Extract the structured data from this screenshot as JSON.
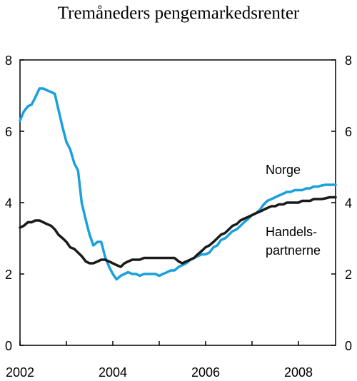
{
  "chart_data": {
    "type": "line",
    "title": "Tremåneders pengemarkedsrenter",
    "xlabel": "",
    "ylabel": "",
    "xlim": [
      2002,
      2008.8
    ],
    "ylim": [
      0,
      8
    ],
    "x_ticks": [
      2002,
      2004,
      2006,
      2008
    ],
    "y_ticks": [
      0,
      2,
      4,
      6,
      8
    ],
    "grid": false,
    "series": [
      {
        "name": "Norge",
        "color": "#1aa0dc",
        "points": [
          [
            2002.0,
            6.3
          ],
          [
            2002.08,
            6.55
          ],
          [
            2002.17,
            6.7
          ],
          [
            2002.25,
            6.75
          ],
          [
            2002.33,
            6.95
          ],
          [
            2002.42,
            7.2
          ],
          [
            2002.5,
            7.2
          ],
          [
            2002.58,
            7.15
          ],
          [
            2002.67,
            7.1
          ],
          [
            2002.75,
            7.05
          ],
          [
            2002.83,
            6.6
          ],
          [
            2002.92,
            6.1
          ],
          [
            2003.0,
            5.7
          ],
          [
            2003.08,
            5.5
          ],
          [
            2003.17,
            5.1
          ],
          [
            2003.25,
            4.9
          ],
          [
            2003.33,
            4.0
          ],
          [
            2003.42,
            3.5
          ],
          [
            2003.5,
            3.1
          ],
          [
            2003.58,
            2.8
          ],
          [
            2003.67,
            2.9
          ],
          [
            2003.75,
            2.9
          ],
          [
            2003.83,
            2.5
          ],
          [
            2003.92,
            2.2
          ],
          [
            2004.0,
            2.0
          ],
          [
            2004.08,
            1.85
          ],
          [
            2004.17,
            1.95
          ],
          [
            2004.25,
            2.0
          ],
          [
            2004.33,
            2.05
          ],
          [
            2004.42,
            2.0
          ],
          [
            2004.5,
            2.0
          ],
          [
            2004.58,
            1.95
          ],
          [
            2004.67,
            2.0
          ],
          [
            2004.75,
            2.0
          ],
          [
            2004.83,
            2.0
          ],
          [
            2004.92,
            2.0
          ],
          [
            2005.0,
            1.95
          ],
          [
            2005.08,
            2.0
          ],
          [
            2005.17,
            2.05
          ],
          [
            2005.25,
            2.1
          ],
          [
            2005.33,
            2.1
          ],
          [
            2005.42,
            2.2
          ],
          [
            2005.5,
            2.25
          ],
          [
            2005.58,
            2.3
          ],
          [
            2005.67,
            2.4
          ],
          [
            2005.75,
            2.45
          ],
          [
            2005.83,
            2.5
          ],
          [
            2005.92,
            2.55
          ],
          [
            2006.0,
            2.55
          ],
          [
            2006.08,
            2.6
          ],
          [
            2006.17,
            2.75
          ],
          [
            2006.25,
            2.8
          ],
          [
            2006.33,
            2.95
          ],
          [
            2006.42,
            3.0
          ],
          [
            2006.5,
            3.1
          ],
          [
            2006.58,
            3.2
          ],
          [
            2006.67,
            3.25
          ],
          [
            2006.75,
            3.35
          ],
          [
            2006.83,
            3.45
          ],
          [
            2006.92,
            3.55
          ],
          [
            2007.0,
            3.65
          ],
          [
            2007.08,
            3.7
          ],
          [
            2007.17,
            3.8
          ],
          [
            2007.25,
            3.95
          ],
          [
            2007.33,
            4.05
          ],
          [
            2007.42,
            4.1
          ],
          [
            2007.5,
            4.15
          ],
          [
            2007.58,
            4.2
          ],
          [
            2007.67,
            4.25
          ],
          [
            2007.75,
            4.3
          ],
          [
            2007.83,
            4.3
          ],
          [
            2007.92,
            4.35
          ],
          [
            2008.0,
            4.35
          ],
          [
            2008.08,
            4.35
          ],
          [
            2008.17,
            4.4
          ],
          [
            2008.25,
            4.4
          ],
          [
            2008.33,
            4.45
          ],
          [
            2008.42,
            4.45
          ],
          [
            2008.5,
            4.48
          ],
          [
            2008.58,
            4.5
          ],
          [
            2008.67,
            4.5
          ],
          [
            2008.75,
            4.5
          ],
          [
            2008.8,
            4.5
          ]
        ]
      },
      {
        "name": "Handels-\npartnerne",
        "color": "#1a1a1a",
        "points": [
          [
            2002.0,
            3.3
          ],
          [
            2002.08,
            3.35
          ],
          [
            2002.17,
            3.45
          ],
          [
            2002.25,
            3.45
          ],
          [
            2002.33,
            3.5
          ],
          [
            2002.42,
            3.5
          ],
          [
            2002.5,
            3.45
          ],
          [
            2002.58,
            3.4
          ],
          [
            2002.67,
            3.35
          ],
          [
            2002.75,
            3.25
          ],
          [
            2002.83,
            3.1
          ],
          [
            2002.92,
            3.0
          ],
          [
            2003.0,
            2.9
          ],
          [
            2003.08,
            2.75
          ],
          [
            2003.17,
            2.7
          ],
          [
            2003.25,
            2.6
          ],
          [
            2003.33,
            2.5
          ],
          [
            2003.42,
            2.35
          ],
          [
            2003.5,
            2.3
          ],
          [
            2003.58,
            2.3
          ],
          [
            2003.67,
            2.35
          ],
          [
            2003.75,
            2.4
          ],
          [
            2003.83,
            2.4
          ],
          [
            2003.92,
            2.35
          ],
          [
            2004.0,
            2.3
          ],
          [
            2004.08,
            2.25
          ],
          [
            2004.17,
            2.2
          ],
          [
            2004.25,
            2.3
          ],
          [
            2004.33,
            2.35
          ],
          [
            2004.42,
            2.4
          ],
          [
            2004.5,
            2.4
          ],
          [
            2004.58,
            2.4
          ],
          [
            2004.67,
            2.45
          ],
          [
            2004.75,
            2.45
          ],
          [
            2004.83,
            2.45
          ],
          [
            2004.92,
            2.45
          ],
          [
            2005.0,
            2.45
          ],
          [
            2005.08,
            2.45
          ],
          [
            2005.17,
            2.45
          ],
          [
            2005.25,
            2.45
          ],
          [
            2005.33,
            2.45
          ],
          [
            2005.42,
            2.35
          ],
          [
            2005.5,
            2.3
          ],
          [
            2005.58,
            2.35
          ],
          [
            2005.67,
            2.4
          ],
          [
            2005.75,
            2.45
          ],
          [
            2005.83,
            2.55
          ],
          [
            2005.92,
            2.65
          ],
          [
            2006.0,
            2.75
          ],
          [
            2006.08,
            2.8
          ],
          [
            2006.17,
            2.9
          ],
          [
            2006.25,
            3.0
          ],
          [
            2006.33,
            3.1
          ],
          [
            2006.42,
            3.15
          ],
          [
            2006.5,
            3.25
          ],
          [
            2006.58,
            3.35
          ],
          [
            2006.67,
            3.4
          ],
          [
            2006.75,
            3.5
          ],
          [
            2006.83,
            3.55
          ],
          [
            2006.92,
            3.6
          ],
          [
            2007.0,
            3.65
          ],
          [
            2007.08,
            3.7
          ],
          [
            2007.17,
            3.75
          ],
          [
            2007.25,
            3.8
          ],
          [
            2007.33,
            3.85
          ],
          [
            2007.42,
            3.9
          ],
          [
            2007.5,
            3.9
          ],
          [
            2007.58,
            3.95
          ],
          [
            2007.67,
            3.95
          ],
          [
            2007.75,
            4.0
          ],
          [
            2007.83,
            4.0
          ],
          [
            2007.92,
            4.0
          ],
          [
            2008.0,
            4.0
          ],
          [
            2008.08,
            4.05
          ],
          [
            2008.17,
            4.05
          ],
          [
            2008.25,
            4.05
          ],
          [
            2008.33,
            4.1
          ],
          [
            2008.42,
            4.1
          ],
          [
            2008.5,
            4.1
          ],
          [
            2008.58,
            4.12
          ],
          [
            2008.67,
            4.15
          ],
          [
            2008.75,
            4.15
          ],
          [
            2008.8,
            4.15
          ]
        ]
      }
    ],
    "labels": {
      "norge": "Norge",
      "handels_line1": "Handels-",
      "handels_line2": "partnerne"
    }
  }
}
